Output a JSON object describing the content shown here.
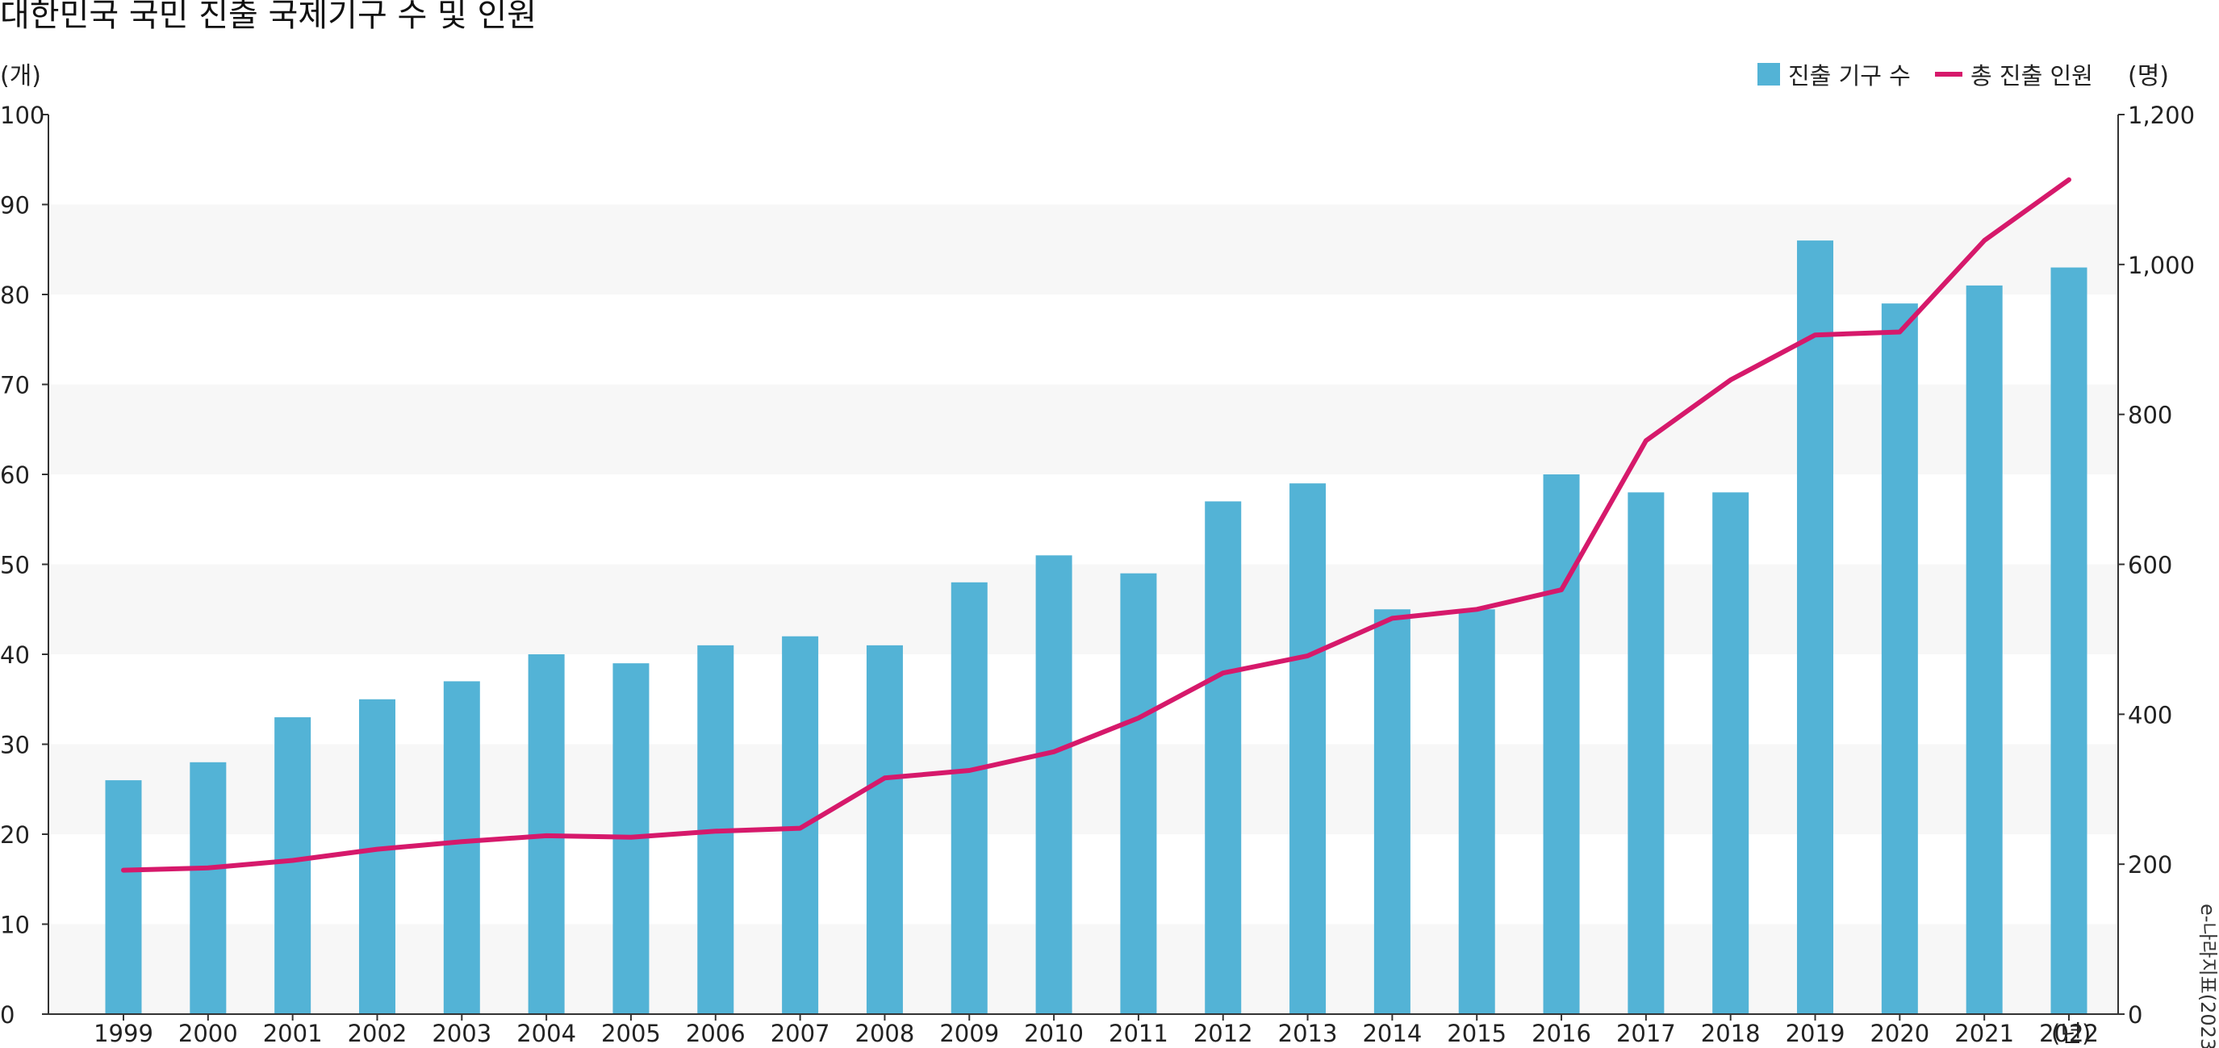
{
  "chart_data": {
    "type": "bar",
    "title": "대한민국 국민 진출 국제기구 수 및 인원",
    "left_unit": "(개)",
    "right_unit": "(명)",
    "x_unit": "(년)",
    "categories": [
      "1999",
      "2000",
      "2001",
      "2002",
      "2003",
      "2004",
      "2005",
      "2006",
      "2007",
      "2008",
      "2009",
      "2010",
      "2011",
      "2012",
      "2013",
      "2014",
      "2015",
      "2016",
      "2017",
      "2018",
      "2019",
      "2020",
      "2021",
      "2022"
    ],
    "series": [
      {
        "name": "진출 기구 수",
        "type": "bar",
        "axis": "left",
        "color": "#53b3d6",
        "values": [
          26,
          28,
          33,
          35,
          37,
          40,
          39,
          41,
          42,
          41,
          48,
          51,
          49,
          57,
          59,
          45,
          45,
          60,
          58,
          58,
          86,
          79,
          81,
          83
        ]
      },
      {
        "name": "총 진출 인원",
        "type": "line",
        "axis": "right",
        "color": "#d6196b",
        "values": [
          192,
          195,
          205,
          220,
          230,
          238,
          236,
          244,
          248,
          315,
          325,
          350,
          395,
          455,
          478,
          528,
          540,
          566,
          765,
          846,
          906,
          910,
          1032,
          1113
        ]
      }
    ],
    "y_left": {
      "min": 0,
      "max": 100,
      "ticks": [
        "0",
        "10",
        "20",
        "30",
        "40",
        "50",
        "60",
        "70",
        "80",
        "90",
        "100"
      ]
    },
    "y_right": {
      "min": 0,
      "max": 1200,
      "ticks": [
        "0",
        "200",
        "400",
        "600",
        "800",
        "1,000",
        "1,200"
      ]
    },
    "grid": "alternating horizontal bands",
    "legend_position": "top-right",
    "source": "e-나라지표(2023)"
  }
}
